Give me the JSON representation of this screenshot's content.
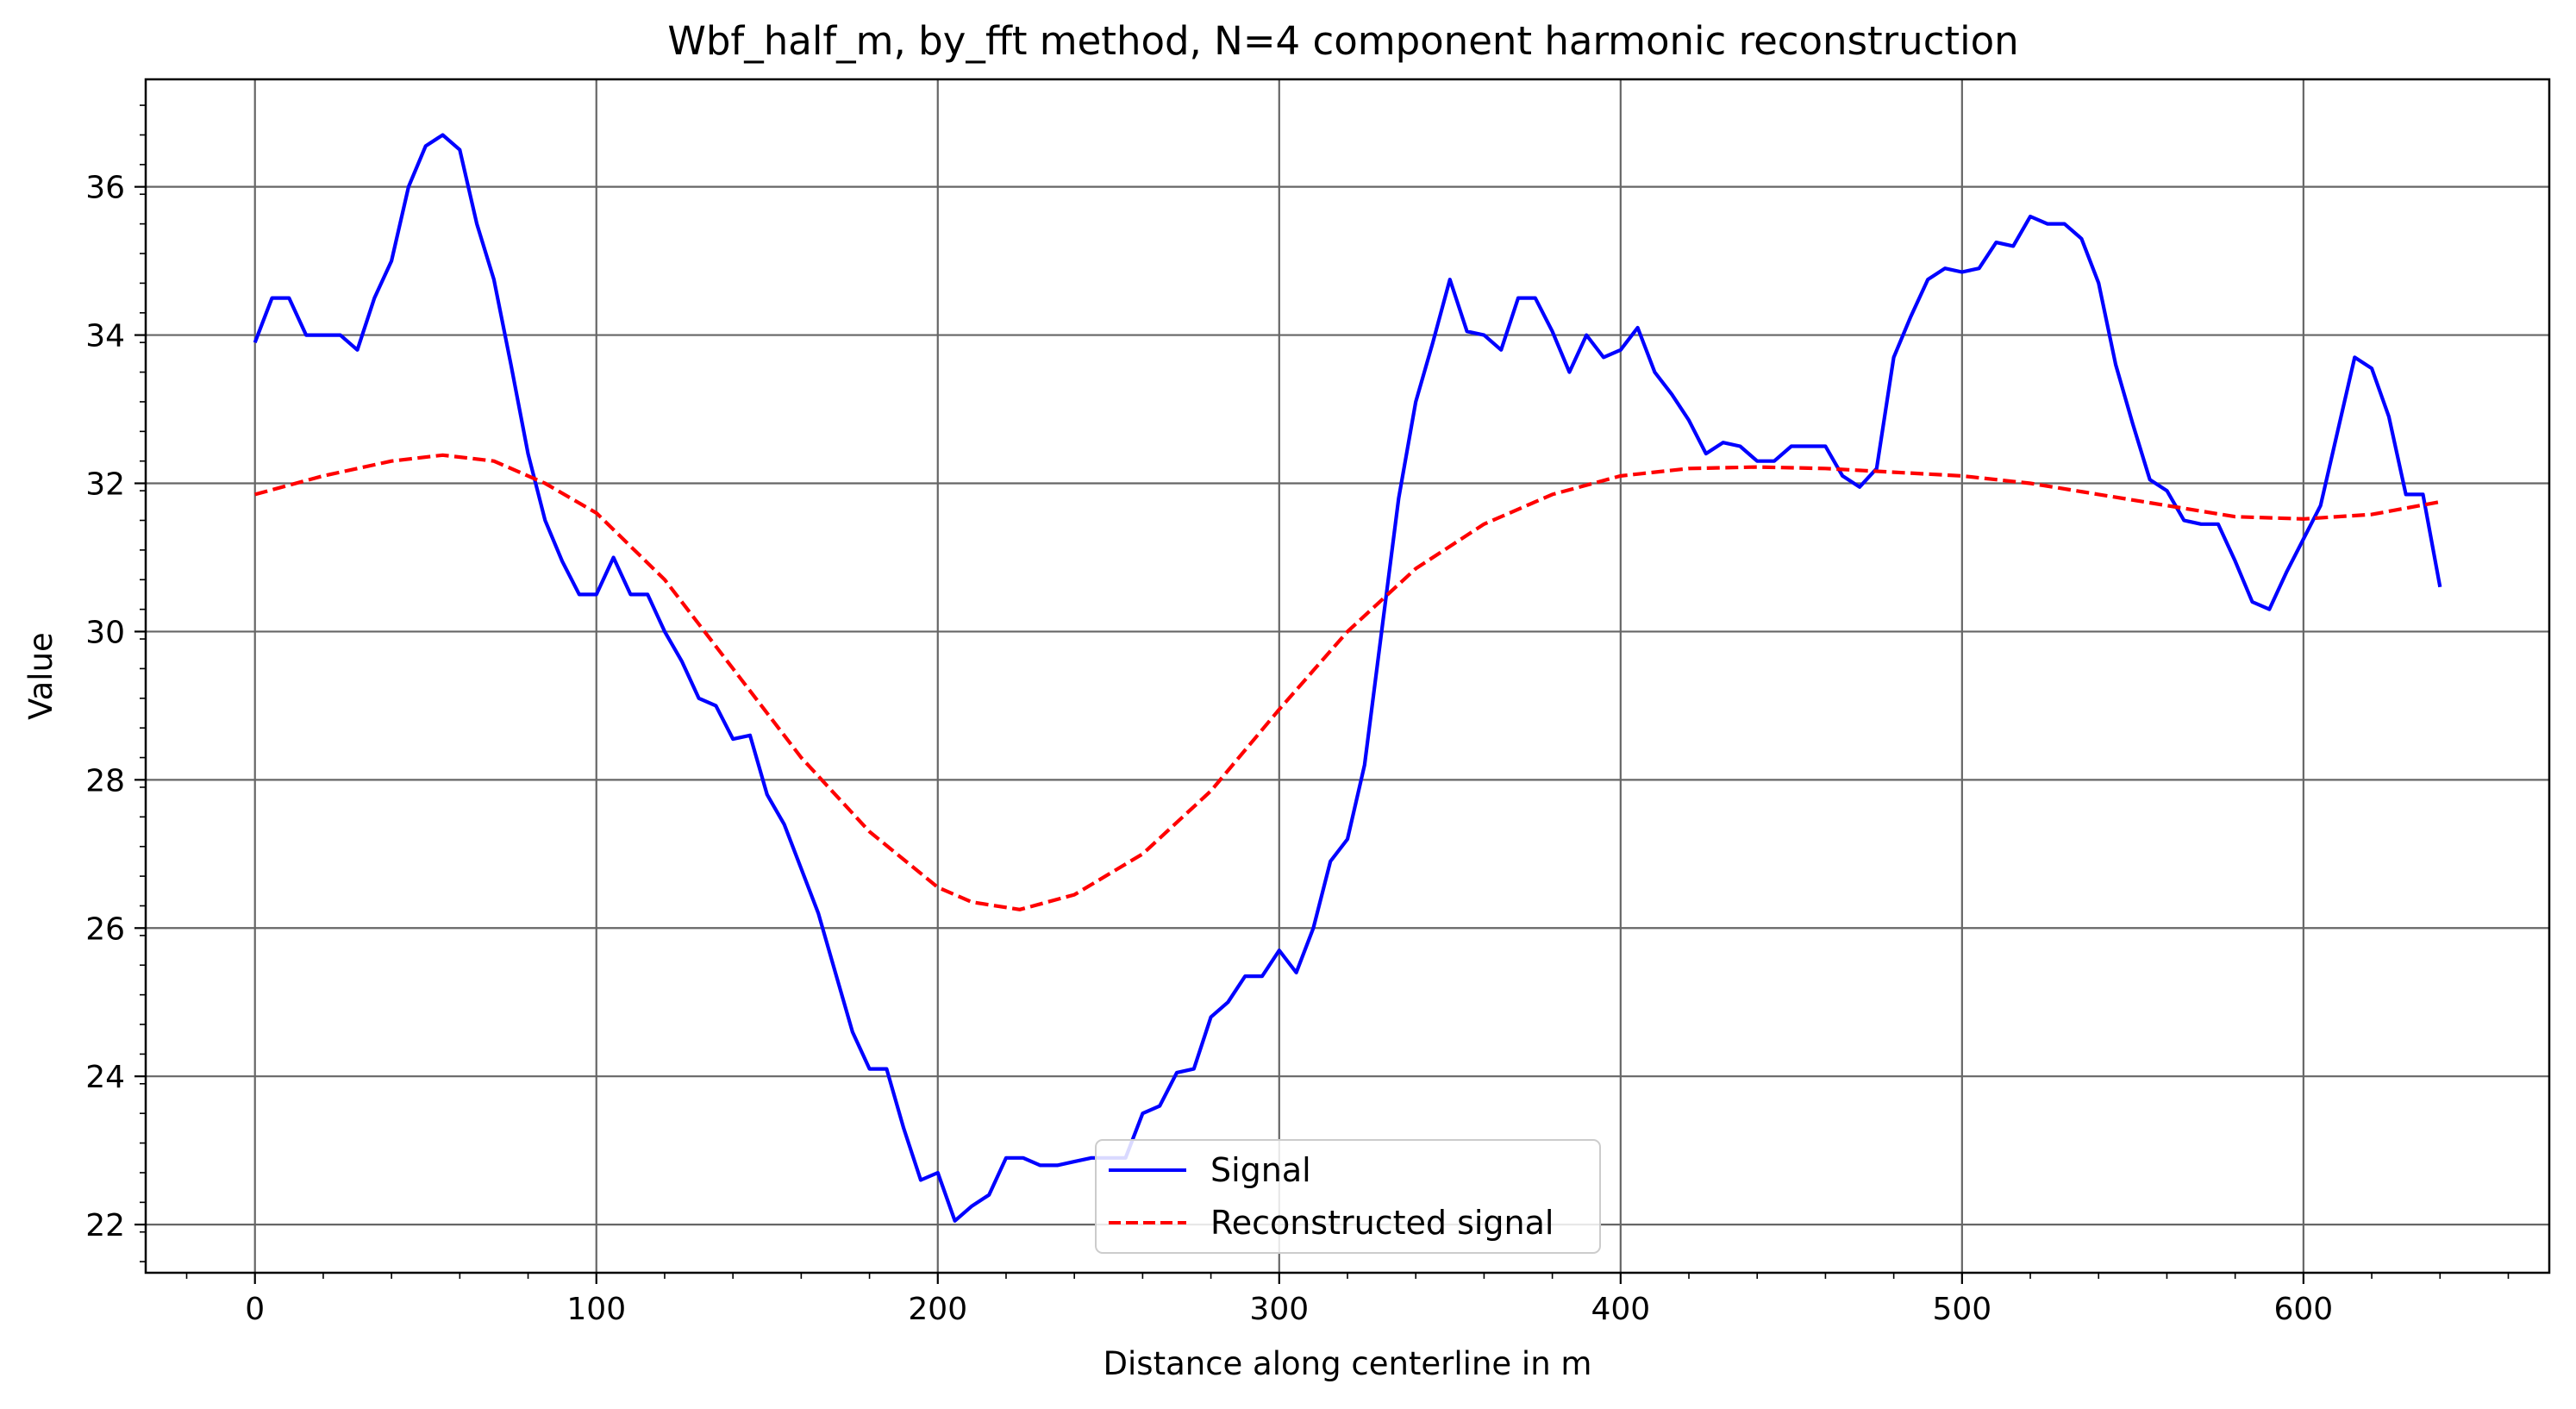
{
  "chart_data": {
    "type": "line",
    "title": "Wbf_half_m, by_fft method, N=4 component harmonic reconstruction",
    "xlabel": "Distance along centerline in m",
    "ylabel": "Value",
    "xlim": [
      -32,
      672
    ],
    "ylim": [
      21.35,
      37.45
    ],
    "xticks": [
      0,
      100,
      200,
      300,
      400,
      500,
      600
    ],
    "xtick_labels": [
      "0",
      "100",
      "200",
      "300",
      "400",
      "500",
      "600"
    ],
    "yticks": [
      22,
      24,
      26,
      28,
      30,
      32,
      34,
      36
    ],
    "ytick_labels": [
      "22",
      "24",
      "26",
      "28",
      "30",
      "32",
      "34",
      "36"
    ],
    "grid": true,
    "legend_position": "lower-center",
    "series": [
      {
        "name": "Signal",
        "color": "#0000ff",
        "style": "solid",
        "x": [
          0,
          5,
          10,
          15,
          20,
          25,
          30,
          35,
          40,
          45,
          50,
          55,
          60,
          65,
          70,
          75,
          80,
          85,
          90,
          95,
          100,
          105,
          110,
          115,
          120,
          125,
          130,
          135,
          140,
          145,
          150,
          155,
          160,
          165,
          170,
          175,
          180,
          185,
          190,
          195,
          200,
          205,
          210,
          215,
          220,
          225,
          230,
          235,
          240,
          245,
          250,
          255,
          260,
          265,
          270,
          275,
          280,
          285,
          290,
          295,
          300,
          305,
          310,
          315,
          320,
          325,
          330,
          335,
          340,
          345,
          350,
          355,
          360,
          365,
          370,
          375,
          380,
          385,
          390,
          395,
          400,
          405,
          410,
          415,
          420,
          425,
          430,
          435,
          440,
          445,
          450,
          455,
          460,
          465,
          470,
          475,
          480,
          485,
          490,
          495,
          500,
          505,
          510,
          515,
          520,
          525,
          530,
          535,
          540,
          545,
          550,
          555,
          560,
          565,
          570,
          575,
          580,
          585,
          590,
          595,
          600,
          605,
          610,
          615,
          620,
          625,
          630,
          635,
          640
        ],
        "values": [
          33.9,
          34.5,
          34.5,
          34.0,
          34.0,
          34.0,
          33.8,
          34.5,
          35.0,
          36.0,
          36.55,
          36.7,
          36.5,
          35.5,
          34.75,
          33.6,
          32.4,
          31.5,
          30.95,
          30.5,
          30.5,
          31.0,
          30.5,
          30.5,
          30.0,
          29.6,
          29.1,
          29.0,
          28.55,
          28.6,
          27.8,
          27.4,
          26.8,
          26.2,
          25.4,
          24.6,
          24.1,
          24.1,
          23.3,
          22.6,
          22.7,
          22.05,
          22.25,
          22.4,
          22.9,
          22.9,
          22.8,
          22.8,
          22.85,
          22.9,
          22.9,
          22.9,
          23.5,
          23.6,
          24.05,
          24.1,
          24.8,
          25.0,
          25.35,
          25.35,
          25.7,
          25.4,
          26.0,
          26.9,
          27.2,
          28.2,
          30.0,
          31.8,
          33.1,
          33.9,
          34.75,
          34.05,
          34.0,
          33.8,
          34.5,
          34.5,
          34.05,
          33.5,
          34.0,
          33.7,
          33.8,
          34.1,
          33.5,
          33.2,
          32.85,
          32.4,
          32.55,
          32.5,
          32.3,
          32.3,
          32.5,
          32.5,
          32.5,
          32.1,
          31.95,
          32.2,
          33.7,
          34.25,
          34.75,
          34.9,
          34.85,
          34.9,
          35.25,
          35.2,
          35.6,
          35.5,
          35.5,
          35.3,
          34.7,
          33.6,
          32.8,
          32.05,
          31.9,
          31.5,
          31.45,
          31.45,
          30.95,
          30.4,
          30.3,
          30.8,
          31.25,
          31.7,
          32.7,
          33.7,
          33.55,
          32.9,
          31.85,
          31.85,
          30.6
        ]
      },
      {
        "name": "Reconstructed signal",
        "color": "#ff0000",
        "style": "dashed",
        "x": [
          0,
          20,
          40,
          55,
          70,
          85,
          100,
          120,
          140,
          160,
          180,
          200,
          210,
          224,
          240,
          260,
          280,
          300,
          320,
          340,
          360,
          380,
          400,
          420,
          440,
          460,
          480,
          500,
          520,
          540,
          560,
          580,
          600,
          620,
          640
        ],
        "values": [
          31.85,
          32.1,
          32.3,
          32.38,
          32.3,
          32.0,
          31.6,
          30.7,
          29.5,
          28.3,
          27.3,
          26.55,
          26.35,
          26.25,
          26.45,
          27.0,
          27.85,
          28.95,
          30.0,
          30.85,
          31.45,
          31.85,
          32.1,
          32.2,
          32.22,
          32.2,
          32.15,
          32.1,
          32.0,
          31.85,
          31.7,
          31.55,
          31.52,
          31.58,
          31.75
        ]
      }
    ]
  }
}
